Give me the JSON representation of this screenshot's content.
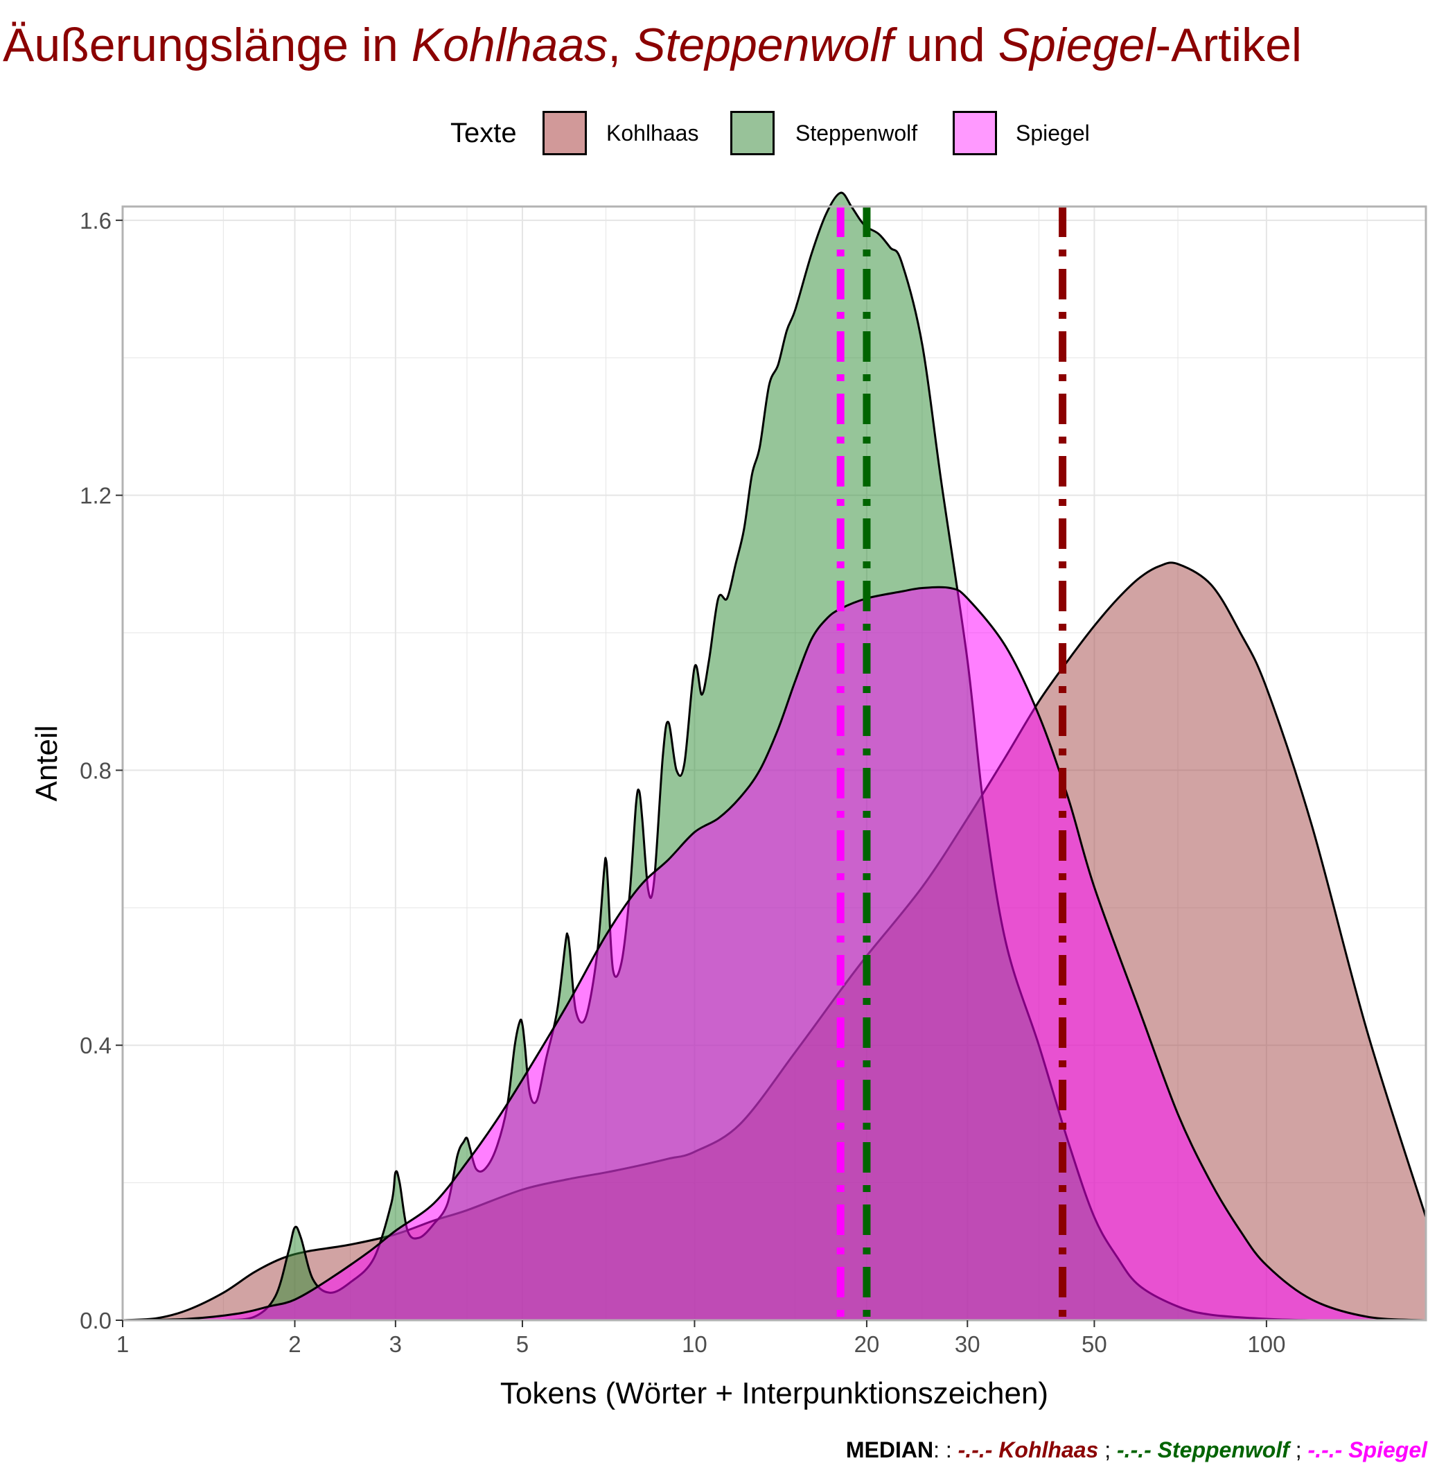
{
  "title": {
    "part1": "Äußerungslänge in ",
    "kohlhaas": "Kohlhaas",
    "sep1": ", ",
    "steppenwolf": "Steppenwolf",
    "sep2": " und ",
    "spiegel": "Spiegel",
    "part_end": "-Artikel"
  },
  "legend": {
    "title": "Texte",
    "items": [
      {
        "label": "Kohlhaas",
        "fill": "#d19999",
        "outline": "#000000"
      },
      {
        "label": "Steppenwolf",
        "fill": "#98c299",
        "outline": "#000000"
      },
      {
        "label": "Spiegel",
        "fill": "#ff99ff",
        "outline": "#000000"
      }
    ]
  },
  "caption": {
    "median_label": "MEDIAN",
    "sep_colon": ": : ",
    "kohlhaas": "-.-.- Kohlhaas",
    "sep": " ; ",
    "steppenwolf": "-.-.- Steppenwolf",
    "spiegel": "-.-.- Spiegel"
  },
  "colors": {
    "kohlhaas": "#8b0000",
    "steppenwolf": "#006400",
    "spiegel": "#ff00ff",
    "grid": "#e5e5e5",
    "panel_border": "#b3b3b3"
  },
  "chart_data": {
    "type": "area",
    "subtype": "density",
    "xlabel": "Tokens (Wörter + Interpunktionszeichen)",
    "ylabel": "Anteil",
    "x_scale": "log10",
    "xlim": [
      1,
      190
    ],
    "ylim": [
      0,
      1.62
    ],
    "x_ticks": [
      1,
      2,
      3,
      5,
      10,
      20,
      30,
      50,
      100
    ],
    "y_ticks": [
      0.0,
      0.4,
      0.8,
      1.2,
      1.6
    ],
    "y_tick_labels": [
      "0.0",
      "0.4",
      "0.8",
      "1.2",
      "1.6"
    ],
    "grid": true,
    "legend_position": "top",
    "series": [
      {
        "name": "Kohlhaas",
        "x": [
          1,
          1.15,
          1.3,
          1.5,
          1.7,
          1.9,
          2.1,
          2.5,
          3,
          3.5,
          4,
          5,
          6,
          7,
          8,
          9,
          10,
          12,
          15,
          18,
          20,
          25,
          30,
          35,
          40,
          45,
          50,
          55,
          60,
          65,
          70,
          80,
          90,
          100,
          120,
          150,
          190
        ],
        "y": [
          0,
          0.003,
          0.015,
          0.04,
          0.07,
          0.09,
          0.1,
          0.11,
          0.125,
          0.145,
          0.16,
          0.19,
          0.205,
          0.215,
          0.225,
          0.235,
          0.245,
          0.285,
          0.39,
          0.48,
          0.53,
          0.63,
          0.73,
          0.82,
          0.9,
          0.96,
          1.01,
          1.05,
          1.08,
          1.097,
          1.1,
          1.07,
          1.0,
          0.92,
          0.72,
          0.42,
          0.15
        ]
      },
      {
        "name": "Steppenwolf",
        "x": [
          1.5,
          1.7,
          1.85,
          1.95,
          2.0,
          2.05,
          2.15,
          2.3,
          2.5,
          2.75,
          2.95,
          3.0,
          3.05,
          3.15,
          3.3,
          3.5,
          3.7,
          3.85,
          3.95,
          4.0,
          4.05,
          4.15,
          4.3,
          4.5,
          4.7,
          4.85,
          4.95,
          5.0,
          5.05,
          5.15,
          5.3,
          5.5,
          5.75,
          5.95,
          6.0,
          6.05,
          6.2,
          6.45,
          6.75,
          6.95,
          7.0,
          7.05,
          7.2,
          7.45,
          7.7,
          7.9,
          8.0,
          8.1,
          8.3,
          8.5,
          8.8,
          9.0,
          9.3,
          9.6,
          10.0,
          10.3,
          10.6,
          11.0,
          11.4,
          11.8,
          12.2,
          12.6,
          13.0,
          13.5,
          14.0,
          14.5,
          15.0,
          16.0,
          17.0,
          18.0,
          18.8,
          19.5,
          20.0,
          21.0,
          22.0,
          23.0,
          25.0,
          27.0,
          30.0,
          32.0,
          35.0,
          40.0,
          45.0,
          50.0,
          55.0,
          60.0,
          70.0,
          80.0,
          100.0,
          120.0
        ],
        "y": [
          0,
          0.005,
          0.035,
          0.1,
          0.135,
          0.12,
          0.06,
          0.04,
          0.055,
          0.09,
          0.17,
          0.215,
          0.2,
          0.13,
          0.12,
          0.14,
          0.17,
          0.24,
          0.26,
          0.265,
          0.25,
          0.22,
          0.22,
          0.25,
          0.31,
          0.4,
          0.435,
          0.43,
          0.4,
          0.33,
          0.32,
          0.38,
          0.45,
          0.55,
          0.56,
          0.54,
          0.45,
          0.44,
          0.53,
          0.655,
          0.67,
          0.64,
          0.51,
          0.52,
          0.62,
          0.75,
          0.77,
          0.73,
          0.625,
          0.64,
          0.82,
          0.87,
          0.8,
          0.81,
          0.95,
          0.91,
          0.96,
          1.05,
          1.05,
          1.1,
          1.15,
          1.23,
          1.27,
          1.36,
          1.39,
          1.44,
          1.47,
          1.55,
          1.61,
          1.64,
          1.62,
          1.6,
          1.59,
          1.58,
          1.56,
          1.54,
          1.42,
          1.22,
          0.96,
          0.75,
          0.55,
          0.4,
          0.26,
          0.15,
          0.09,
          0.05,
          0.02,
          0.008,
          0.002,
          0
        ]
      },
      {
        "name": "Spiegel",
        "x": [
          1,
          1.3,
          1.6,
          1.8,
          2.0,
          2.3,
          2.7,
          3.0,
          3.5,
          4.0,
          4.5,
          5.0,
          6.0,
          7.0,
          8.0,
          9.0,
          10.0,
          11.0,
          12.0,
          13.0,
          14.0,
          15.0,
          16.0,
          17.0,
          18.0,
          20.0,
          23.0,
          25.0,
          28.0,
          30.0,
          35.0,
          40.0,
          45.0,
          50.0,
          60.0,
          70.0,
          80.0,
          90.0,
          100.0,
          120.0,
          150.0,
          190.0
        ],
        "y": [
          0,
          0.002,
          0.01,
          0.02,
          0.03,
          0.06,
          0.1,
          0.13,
          0.17,
          0.23,
          0.29,
          0.35,
          0.46,
          0.56,
          0.63,
          0.67,
          0.71,
          0.73,
          0.76,
          0.8,
          0.86,
          0.93,
          0.99,
          1.02,
          1.035,
          1.05,
          1.06,
          1.065,
          1.065,
          1.05,
          0.98,
          0.88,
          0.76,
          0.63,
          0.45,
          0.3,
          0.2,
          0.13,
          0.08,
          0.03,
          0.005,
          0
        ]
      }
    ],
    "medians": [
      {
        "series": "Kohlhaas",
        "x": 44
      },
      {
        "series": "Steppenwolf",
        "x": 20
      },
      {
        "series": "Spiegel",
        "x": 18
      }
    ]
  }
}
